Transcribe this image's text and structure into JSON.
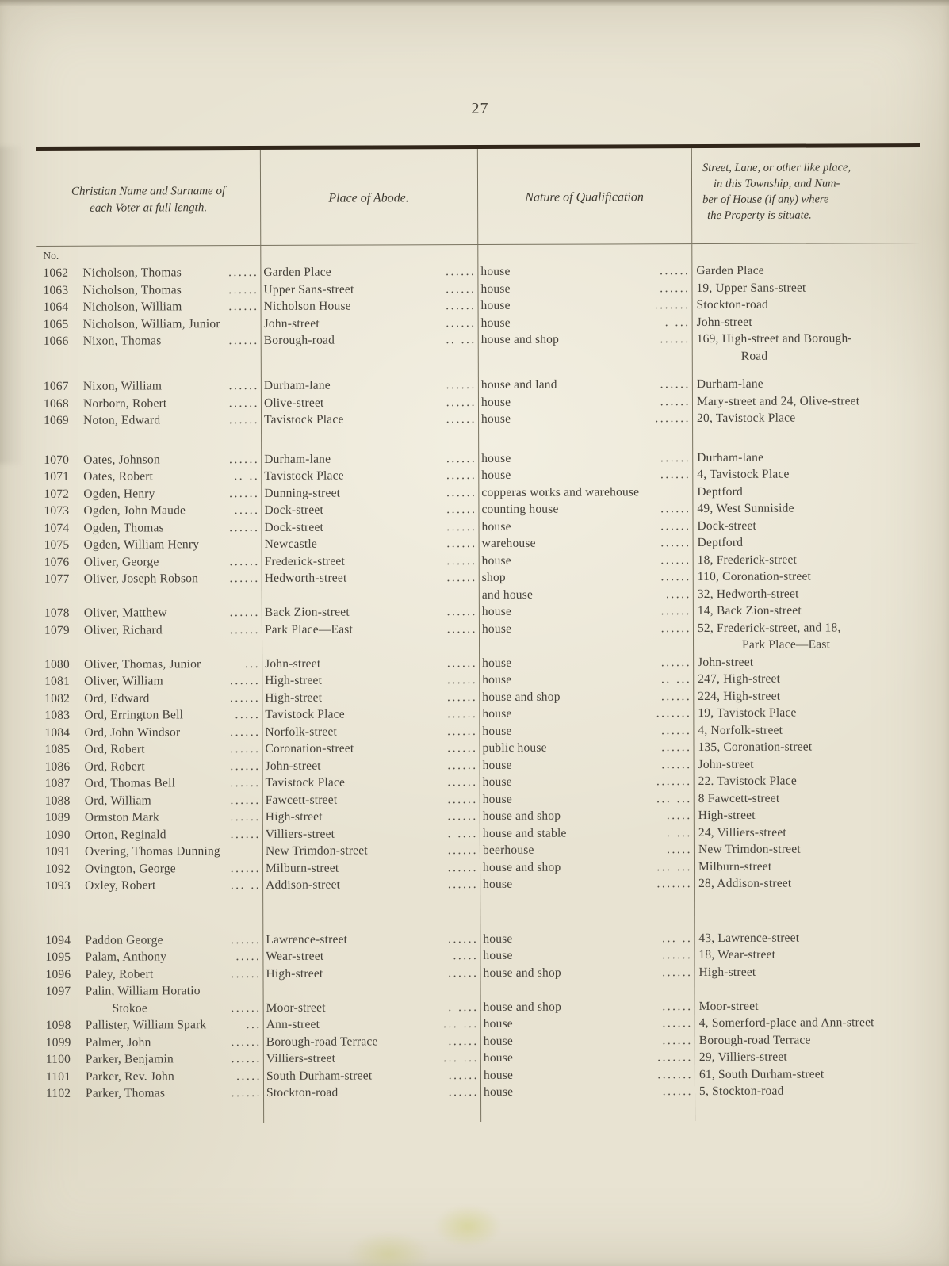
{
  "page_number": "27",
  "no_label": "No.",
  "colors": {
    "paper": "#e8e3d2",
    "ink": "#45413a",
    "rule": "#78725f",
    "top_rule": "#31261a"
  },
  "header": {
    "col1_line1": "Christian Name and Surname of",
    "col1_line2": "each Voter at full length.",
    "col2": "Place of Abode.",
    "col3": "Nature of Qualification",
    "col4_line1": "Street, Lane, or other like place,",
    "col4_line2": "in this Township, and Num-",
    "col4_line3": "ber of House (if any) where",
    "col4_line4": "the Property is situate."
  },
  "rows": [
    {
      "no": "1062",
      "name": "Nicholson, Thomas",
      "nd": "......",
      "abode": "Garden Place",
      "ad": "......",
      "qual": "house",
      "qd": "......",
      "street": "Garden Place",
      "street2": "",
      "cls": ""
    },
    {
      "no": "1063",
      "name": "Nicholson, Thomas",
      "nd": "......",
      "abode": "Upper Sans-street",
      "ad": "......",
      "qual": "house",
      "qd": "......",
      "street": "19, Upper Sans-street",
      "street2": "",
      "cls": ""
    },
    {
      "no": "1064",
      "name": "Nicholson, William",
      "nd": "......",
      "abode": "Nicholson House",
      "ad": "......",
      "qual": "house",
      "qd": ".......",
      "street": "Stockton-road",
      "street2": "",
      "cls": ""
    },
    {
      "no": "1065",
      "name": "Nicholson, William, Junior",
      "nd": "",
      "abode": "John-street",
      "ad": "......",
      "qual": "house",
      "qd": ". ...",
      "street": "John-street",
      "street2": "",
      "cls": ""
    },
    {
      "no": "1066",
      "name": "Nixon, Thomas",
      "nd": "......",
      "abode": "Borough-road",
      "ad": ".. ...",
      "qual": "house and shop",
      "qd": "......",
      "street": "169, High-street and Borough-",
      "street2": "Road",
      "cls": ""
    },
    {
      "no": "1067",
      "name": "Nixon, William",
      "nd": "......",
      "abode": "Durham-lane",
      "ad": "......",
      "qual": "house and land",
      "qd": "......",
      "street": "Durham-lane",
      "street2": "",
      "cls": "gap14"
    },
    {
      "no": "1068",
      "name": "Norborn, Robert",
      "nd": "......",
      "abode": "Olive-street",
      "ad": "......",
      "qual": "house",
      "qd": "......",
      "street": "Mary-street and 24, Olive-street",
      "street2": "",
      "cls": ""
    },
    {
      "no": "1069",
      "name": "Noton, Edward",
      "nd": "......",
      "abode": "Tavistock Place",
      "ad": "......",
      "qual": "house",
      "qd": ".......",
      "street": "20, Tavistock Place",
      "street2": "",
      "cls": ""
    },
    {
      "no": "1070",
      "name": "Oates, Johnson",
      "nd": "......",
      "abode": "Durham-lane",
      "ad": "......",
      "qual": "house",
      "qd": "......",
      "street": "Durham-lane",
      "street2": "",
      "cls": "gap28"
    },
    {
      "no": "1071",
      "name": "Oates, Robert",
      "nd": ".. ..",
      "abode": "Tavistock Place",
      "ad": "......",
      "qual": "house",
      "qd": "......",
      "street": "4, Tavistock Place",
      "street2": "",
      "cls": ""
    },
    {
      "no": "1072",
      "name": "Ogden, Henry",
      "nd": "......",
      "abode": "Dunning-street",
      "ad": "......",
      "qual": "copperas works and warehouse",
      "qd": "",
      "street": "Deptford",
      "street2": "",
      "cls": ""
    },
    {
      "no": "1073",
      "name": "Ogden, John Maude",
      "nd": ".....",
      "abode": "Dock-street",
      "ad": "......",
      "qual": "counting house",
      "qd": "......",
      "street": "49, West Sunniside",
      "street2": "",
      "cls": ""
    },
    {
      "no": "1074",
      "name": "Ogden, Thomas",
      "nd": "......",
      "abode": "Dock-street",
      "ad": "......",
      "qual": "house",
      "qd": "......",
      "street": "Dock-street",
      "street2": "",
      "cls": ""
    },
    {
      "no": "1075",
      "name": "Ogden, William Henry",
      "nd": "",
      "abode": "Newcastle",
      "ad": "......",
      "qual": "warehouse",
      "qd": "......",
      "street": "Deptford",
      "street2": "",
      "cls": ""
    },
    {
      "no": "1076",
      "name": "Oliver, George",
      "nd": "......",
      "abode": "Frederick-street",
      "ad": "......",
      "qual": "house",
      "qd": "......",
      "street": "18, Frederick-street",
      "street2": "",
      "cls": ""
    },
    {
      "no": "1077",
      "name": "Oliver, Joseph Robson",
      "nd": "......",
      "abode": "Hedworth-street",
      "ad": "......",
      "qual": "shop",
      "qd": "......",
      "street": "110, Coronation-street",
      "street2": "",
      "cls": ""
    },
    {
      "no": "",
      "name": "",
      "nd": "",
      "abode": "",
      "ad": "",
      "qual": "and house",
      "qd": ".....",
      "street": "32, Hedworth-street",
      "street2": "",
      "cls": ""
    },
    {
      "no": "1078",
      "name": "Oliver, Matthew",
      "nd": "......",
      "abode": "Back Zion-street",
      "ad": "......",
      "qual": "house",
      "qd": "......",
      "street": "14, Back Zion-street",
      "street2": "",
      "cls": ""
    },
    {
      "no": "1079",
      "name": "Oliver, Richard",
      "nd": "......",
      "abode": "Park Place—East",
      "ad": "......",
      "qual": "house",
      "qd": "......",
      "street": "52, Frederick-street, and 18,",
      "street2": "Park Place—East",
      "cls": ""
    },
    {
      "no": "1080",
      "name": "Oliver, Thomas, Junior",
      "nd": "...",
      "abode": "John-street",
      "ad": "......",
      "qual": "house",
      "qd": "......",
      "street": "John-street",
      "street2": "",
      "cls": ""
    },
    {
      "no": "1081",
      "name": "Oliver, William",
      "nd": "......",
      "abode": "High-street",
      "ad": "......",
      "qual": "house",
      "qd": ".. ...",
      "street": "247, High-street",
      "street2": "",
      "cls": ""
    },
    {
      "no": "1082",
      "name": "Ord, Edward",
      "nd": "......",
      "abode": "High-street",
      "ad": "......",
      "qual": "house and shop",
      "qd": "......",
      "street": "224, High-street",
      "street2": "",
      "cls": ""
    },
    {
      "no": "1083",
      "name": "Ord, Errington Bell",
      "nd": ".....",
      "abode": "Tavistock Place",
      "ad": "......",
      "qual": "house",
      "qd": ".......",
      "street": "19, Tavistock Place",
      "street2": "",
      "cls": ""
    },
    {
      "no": "1084",
      "name": "Ord, John Windsor",
      "nd": "......",
      "abode": "Norfolk-street",
      "ad": "......",
      "qual": "house",
      "qd": "......",
      "street": "4, Norfolk-street",
      "street2": "",
      "cls": ""
    },
    {
      "no": "1085",
      "name": "Ord, Robert",
      "nd": "......",
      "abode": "Coronation-street",
      "ad": "......",
      "qual": "public house",
      "qd": "......",
      "street": "135, Coronation-street",
      "street2": "",
      "cls": ""
    },
    {
      "no": "1086",
      "name": "Ord, Robert",
      "nd": "......",
      "abode": "John-street",
      "ad": "......",
      "qual": "house",
      "qd": "......",
      "street": "John-street",
      "street2": "",
      "cls": ""
    },
    {
      "no": "1087",
      "name": "Ord, Thomas Bell",
      "nd": "......",
      "abode": "Tavistock Place",
      "ad": "......",
      "qual": "house",
      "qd": ".......",
      "street": "22. Tavistock Place",
      "street2": "",
      "cls": ""
    },
    {
      "no": "1088",
      "name": "Ord, William",
      "nd": "......",
      "abode": "Fawcett-street",
      "ad": "......",
      "qual": "house",
      "qd": "... ...",
      "street": "8 Fawcett-street",
      "street2": "",
      "cls": ""
    },
    {
      "no": "1089",
      "name": "Ormston Mark",
      "nd": "......",
      "abode": "High-street",
      "ad": "......",
      "qual": "house and shop",
      "qd": ".....",
      "street": "High-street",
      "street2": "",
      "cls": ""
    },
    {
      "no": "1090",
      "name": "Orton, Reginald",
      "nd": "......",
      "abode": "Villiers-street",
      "ad": ". ....",
      "qual": "house and stable",
      "qd": ". ...",
      "street": "24, Villiers-street",
      "street2": "",
      "cls": ""
    },
    {
      "no": "1091",
      "name": "Overing, Thomas Dunning",
      "nd": "",
      "abode": "New Trimdon-street",
      "ad": "......",
      "qual": "beerhouse",
      "qd": ".....",
      "street": "New Trimdon-street",
      "street2": "",
      "cls": ""
    },
    {
      "no": "1092",
      "name": "Ovington, George",
      "nd": "......",
      "abode": "Milburn-street",
      "ad": "......",
      "qual": "house and shop",
      "qd": "... ...",
      "street": "Milburn-street",
      "street2": "",
      "cls": ""
    },
    {
      "no": "1093",
      "name": "Oxley, Robert",
      "nd": "... ..",
      "abode": "Addison-street",
      "ad": "......",
      "qual": "house",
      "qd": ".......",
      "street": "28, Addison-street",
      "street2": "",
      "cls": ""
    },
    {
      "no": "1094",
      "name": "Paddon George",
      "nd": "......",
      "abode": "Lawrence-street",
      "ad": "......",
      "qual": "house",
      "qd": "... ..",
      "street": "43, Lawrence-street",
      "street2": "",
      "cls": "gap47"
    },
    {
      "no": "1095",
      "name": "Palam, Anthony",
      "nd": ".....",
      "abode": "Wear-street",
      "ad": ".....",
      "qual": "house",
      "qd": "......",
      "street": "18, Wear-street",
      "street2": "",
      "cls": ""
    },
    {
      "no": "1096",
      "name": "Paley, Robert",
      "nd": "......",
      "abode": "High-street",
      "ad": "......",
      "qual": "house and shop",
      "qd": "......",
      "street": "High-street",
      "street2": "",
      "cls": ""
    },
    {
      "no": "1097",
      "name": "Palin, William Horatio",
      "nd": "",
      "abode": "",
      "ad": "",
      "qual": "",
      "qd": "",
      "street": "",
      "street2": "",
      "cls": ""
    },
    {
      "no": "",
      "name": "Stokoe",
      "nd": "......",
      "abode": "Moor-street",
      "ad": ". ....",
      "qual": "house and shop",
      "qd": "......",
      "street": "Moor-street",
      "street2": "",
      "cls": "contname"
    },
    {
      "no": "1098",
      "name": "Pallister, William Spark",
      "nd": "...",
      "abode": "Ann-street",
      "ad": "... ...",
      "qual": "house",
      "qd": "......",
      "street": "4, Somerford-place and Ann-street",
      "street2": "",
      "cls": ""
    },
    {
      "no": "1099",
      "name": "Palmer, John",
      "nd": "......",
      "abode": "Borough-road Terrace",
      "ad": "......",
      "qual": "house",
      "qd": "......",
      "street": "Borough-road Terrace",
      "street2": "",
      "cls": ""
    },
    {
      "no": "1100",
      "name": "Parker, Benjamin",
      "nd": "......",
      "abode": "Villiers-street",
      "ad": "... ...",
      "qual": "house",
      "qd": ".......",
      "street": "29, Villiers-street",
      "street2": "",
      "cls": ""
    },
    {
      "no": "1101",
      "name": "Parker, Rev. John",
      "nd": ".....",
      "abode": "South Durham-street",
      "ad": "......",
      "qual": "house",
      "qd": ".......",
      "street": "61, South Durham-street",
      "street2": "",
      "cls": ""
    },
    {
      "no": "1102",
      "name": "Parker, Thomas",
      "nd": "......",
      "abode": "Stockton-road",
      "ad": "......",
      "qual": "house",
      "qd": "......",
      "street": "5, Stockton-road",
      "street2": "",
      "cls": ""
    }
  ]
}
